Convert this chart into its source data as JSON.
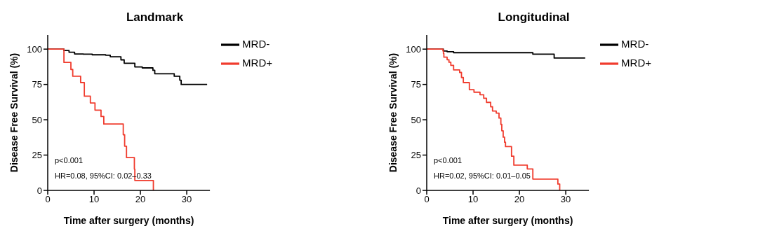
{
  "chart_data": [
    {
      "type": "step",
      "title": "Landmark",
      "xlabel": "Time after surgery (months)",
      "ylabel": "Disease Free Survival (%)",
      "xlim": [
        0,
        35
      ],
      "xticks": [
        0,
        10,
        20,
        30
      ],
      "ylim": [
        0,
        110
      ],
      "yticks": [
        0,
        25,
        50,
        75,
        100
      ],
      "grid": false,
      "legend": "top right",
      "marker": "none",
      "line_style": "solid",
      "annotations": [
        "p<0.001",
        "HR=0.08, 95%CI: 0.02–0.33"
      ],
      "series": [
        {
          "name": "MRD-",
          "color": "#000000",
          "x": [
            0,
            3.5,
            4.6,
            5.8,
            7.7,
            9.6,
            12.5,
            13.5,
            15.8,
            16.5,
            18.8,
            20.4,
            22.7,
            23.1,
            27.3,
            28.5,
            28.8,
            34.4
          ],
          "values": [
            100,
            99,
            97.8,
            96.6,
            96.4,
            96,
            95.7,
            94.6,
            92.4,
            90,
            87.4,
            86.7,
            85,
            82.6,
            80.8,
            78,
            75,
            75
          ]
        },
        {
          "name": "MRD+",
          "color": "#f03c2e",
          "x": [
            0,
            3.5,
            5,
            5.4,
            7.1,
            7.9,
            9.2,
            10.2,
            11.5,
            12.1,
            16.3,
            16.6,
            17,
            18.7,
            18.8,
            22.8
          ],
          "values": [
            100,
            90.6,
            85.6,
            80.8,
            76.3,
            66.7,
            61.9,
            56.8,
            52.3,
            47,
            39.4,
            31.3,
            23.2,
            15.1,
            7,
            0
          ]
        }
      ]
    },
    {
      "type": "step",
      "title": "Longitudinal",
      "xlabel": "Time after surgery (months)",
      "ylabel": "Disease Free Survival (%)",
      "xlim": [
        0,
        35
      ],
      "xticks": [
        0,
        10,
        20,
        30
      ],
      "ylim": [
        0,
        110
      ],
      "yticks": [
        0,
        25,
        50,
        75,
        100
      ],
      "grid": false,
      "legend": "top right",
      "marker": "none",
      "line_style": "solid",
      "annotations": [
        "p<0.001",
        "HR=0.02, 95%CI: 0.01–0.05"
      ],
      "series": [
        {
          "name": "MRD-",
          "color": "#000000",
          "x": [
            0,
            3.6,
            4.4,
            5.8,
            22.9,
            27.5,
            34.2
          ],
          "values": [
            100,
            98.7,
            98.2,
            97.5,
            96.4,
            93.7,
            93.7
          ]
        },
        {
          "name": "MRD+",
          "color": "#f03c2e",
          "x": [
            0,
            3.5,
            3.6,
            3.7,
            4.4,
            4.8,
            5.2,
            5.8,
            7.1,
            7.5,
            7.9,
            9.2,
            10.2,
            11.5,
            12.3,
            12.9,
            13.8,
            14.2,
            15,
            15.6,
            16,
            16.2,
            16.5,
            16.8,
            17,
            18.3,
            18.8,
            21.7,
            22.9,
            28.3,
            28.7
          ],
          "values": [
            100,
            98.7,
            96.9,
            94.3,
            92.5,
            90.7,
            88.5,
            85.3,
            83.5,
            79.9,
            76.3,
            71.3,
            69.5,
            67.7,
            65.2,
            62.3,
            59.2,
            56.2,
            54.7,
            51.2,
            46.7,
            42.2,
            37.7,
            34.1,
            31,
            24.2,
            17.9,
            15.2,
            8,
            4.5,
            0
          ]
        }
      ]
    }
  ]
}
